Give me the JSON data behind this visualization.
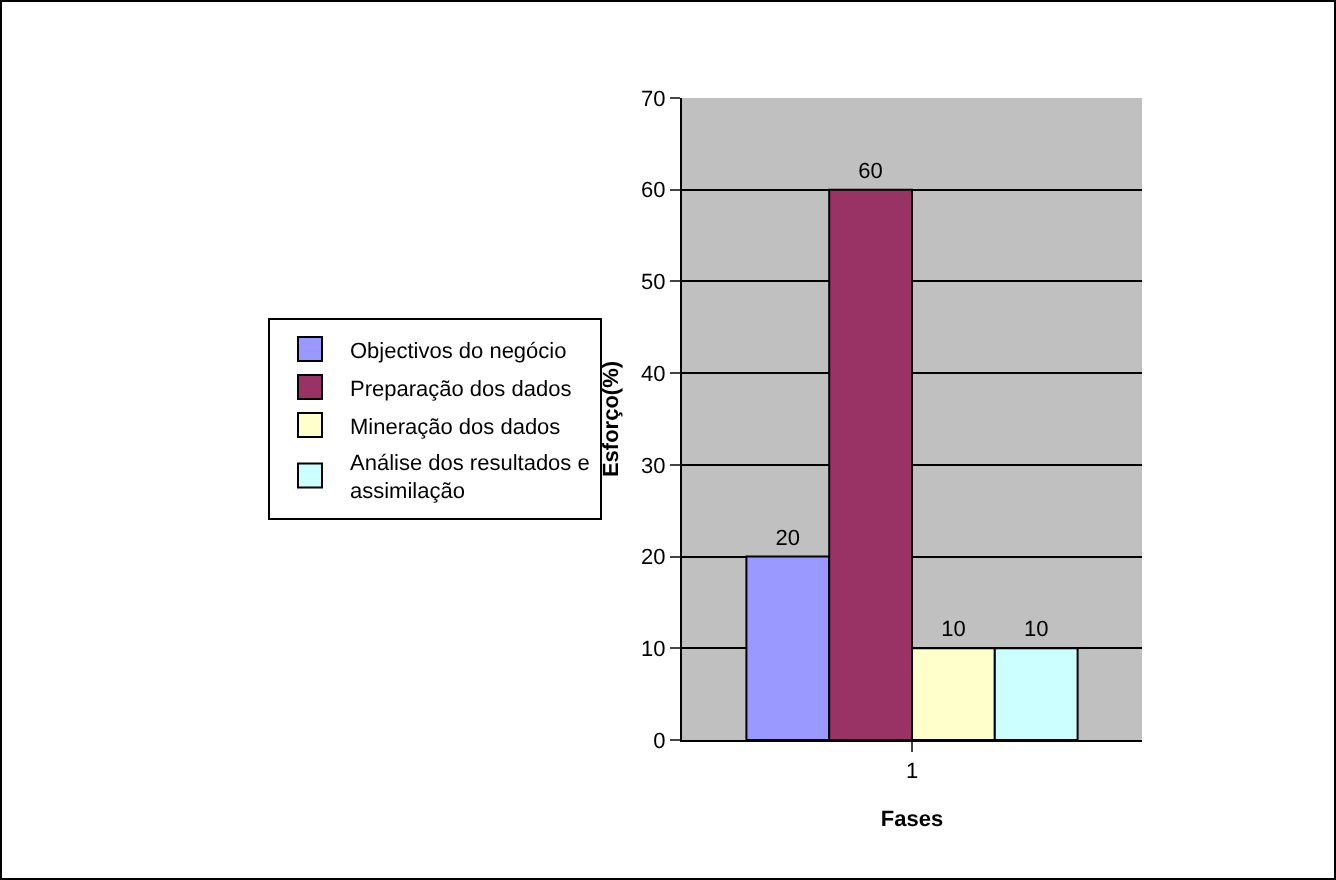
{
  "chart_data": {
    "type": "bar",
    "xlabel": "Fases",
    "ylabel": "Esforço(%)",
    "categories": [
      "1"
    ],
    "series": [
      {
        "name": "Objectivos do negócio",
        "color": "#9999ff",
        "values": [
          20
        ]
      },
      {
        "name": "Preparação dos dados",
        "color": "#993366",
        "values": [
          60
        ]
      },
      {
        "name": "Mineração dos dados",
        "color": "#ffffcc",
        "values": [
          10
        ]
      },
      {
        "name": "Análise dos resultados e assimilação",
        "color": "#ccffff",
        "values": [
          10
        ]
      }
    ],
    "ylim": [
      0,
      70
    ],
    "yticks": [
      0,
      10,
      20,
      30,
      40,
      50,
      60,
      70
    ],
    "grid": "y",
    "legend": "left",
    "data_labels": true
  }
}
